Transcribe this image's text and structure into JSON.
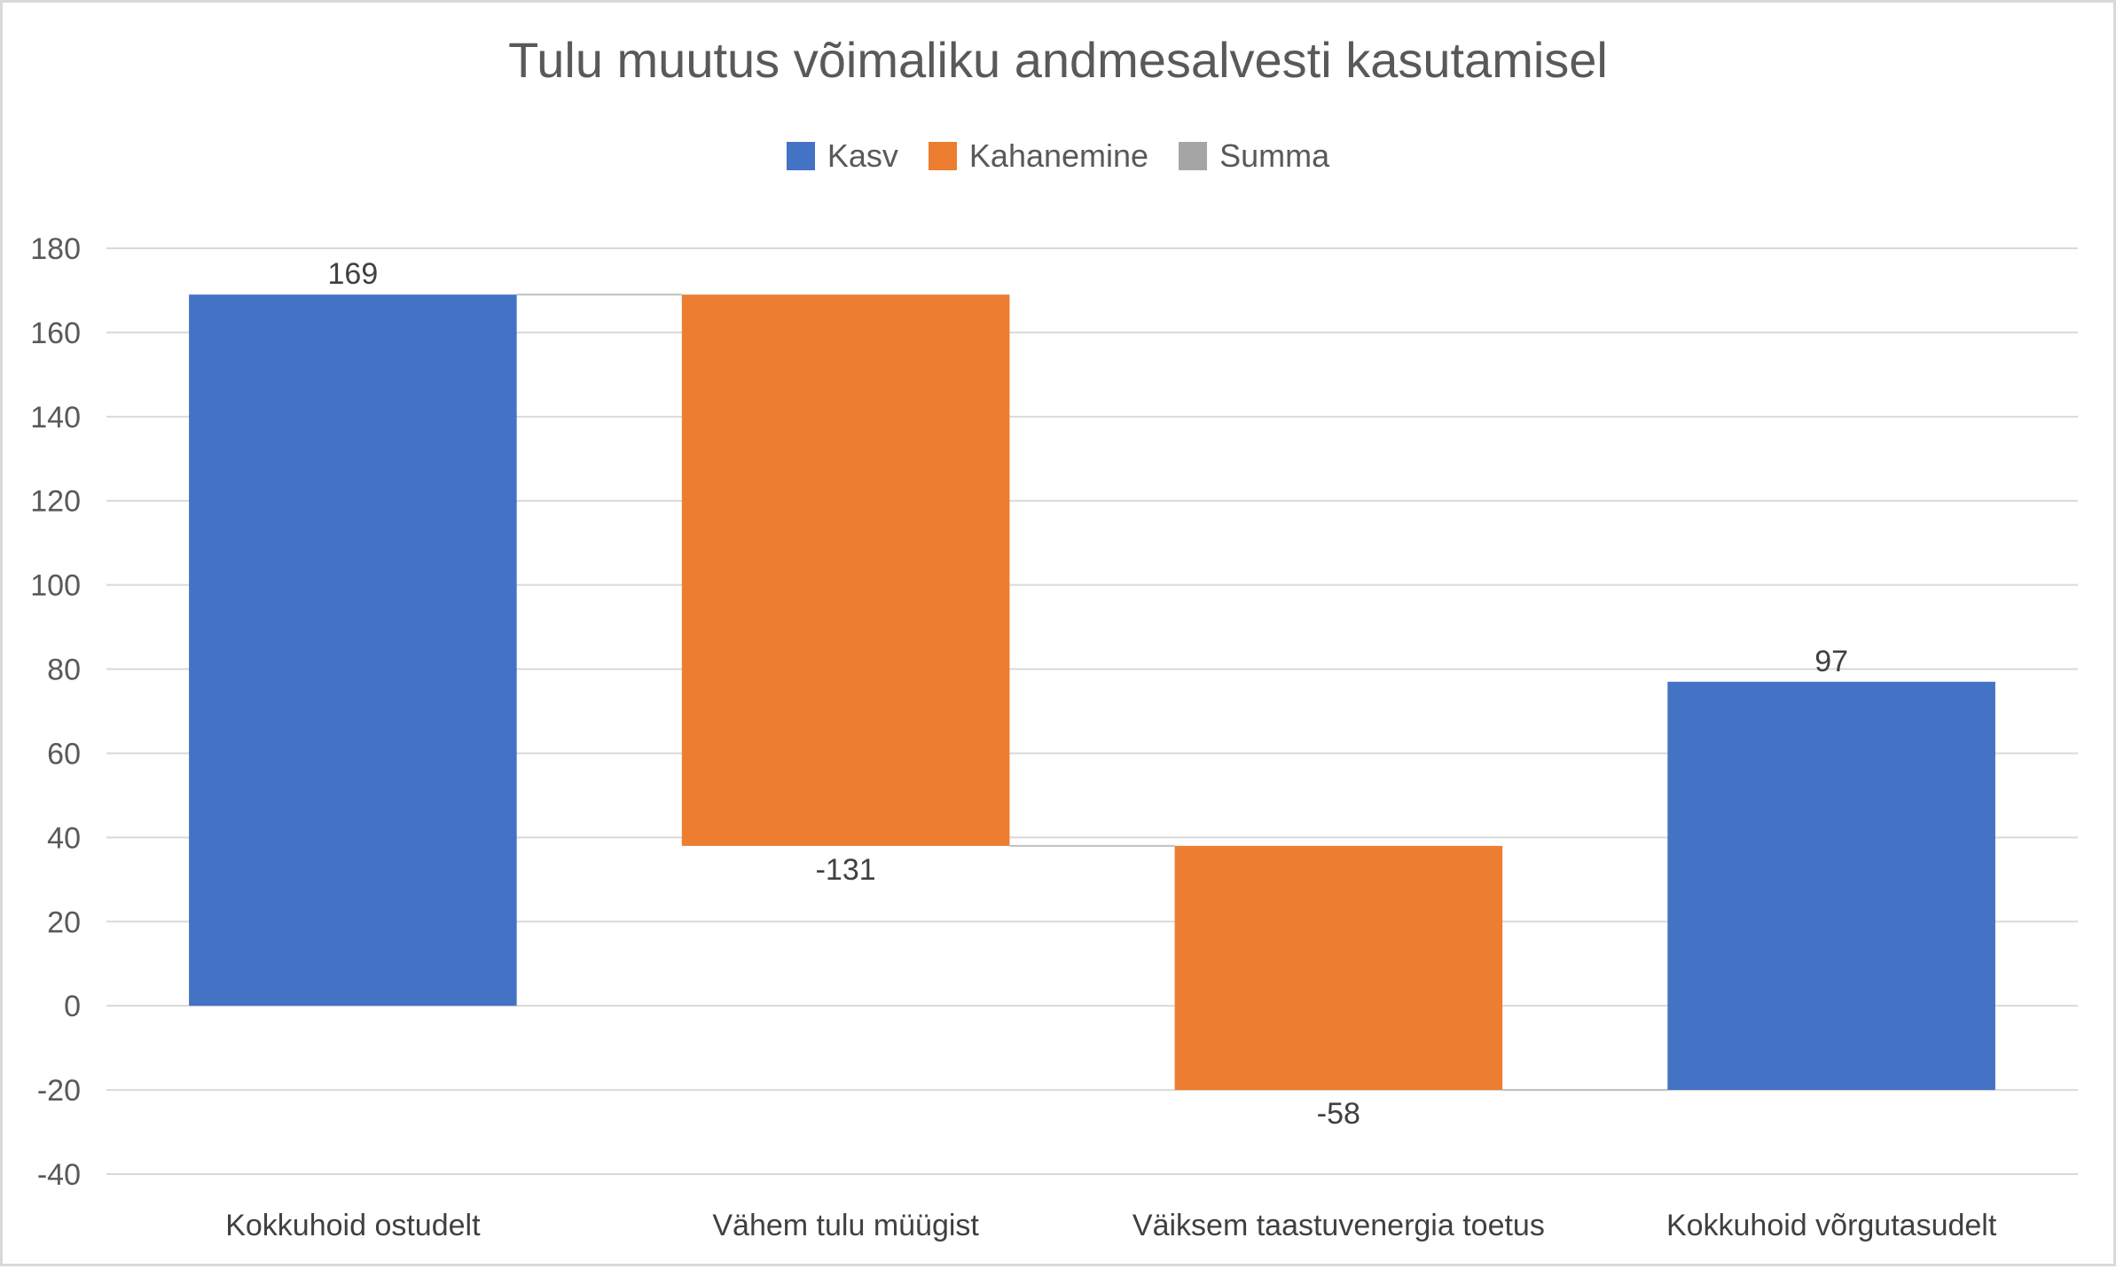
{
  "chart_data": {
    "type": "bar",
    "subtype": "waterfall",
    "title": "Tulu muutus võimaliku andmesalvesti kasutamisel",
    "xlabel": "",
    "ylabel": "",
    "ylim": [
      -40,
      180
    ],
    "yticks": [
      -40,
      -20,
      0,
      20,
      40,
      60,
      80,
      100,
      120,
      140,
      160,
      180
    ],
    "ytick_labels": [
      "-40",
      "-20",
      "0",
      "20",
      "40",
      "60",
      "80",
      "100",
      "120",
      "140",
      "160",
      "180"
    ],
    "grid": true,
    "legend_position": "top",
    "legend": [
      {
        "name": "Kasv",
        "color": "#4472C4"
      },
      {
        "name": "Kahanemine",
        "color": "#ED7D31"
      },
      {
        "name": "Summa",
        "color": "#A5A5A5"
      }
    ],
    "categories": [
      "Kokkuhoid ostudelt",
      "Vähem tulu müügist",
      "Väiksem taastuvenergia toetus",
      "Kokkuhoid võrgutasudelt"
    ],
    "bars": [
      {
        "category": "Kokkuhoid ostudelt",
        "type": "increase",
        "start": 0,
        "end": 169,
        "label": "169"
      },
      {
        "category": "Vähem tulu müügist",
        "type": "decrease",
        "start": 169,
        "end": 38,
        "label": "-131"
      },
      {
        "category": "Väiksem taastuvenergia toetus",
        "type": "decrease",
        "start": 38,
        "end": -20,
        "label": "-58"
      },
      {
        "category": "Kokkuhoid võrgutasudelt",
        "type": "increase",
        "start": -20,
        "end": 77,
        "label": "97"
      }
    ],
    "colors": {
      "increase": "#4472C4",
      "decrease": "#ED7D31",
      "total": "#A5A5A5",
      "grid": "#d9d9d9",
      "connector": "#bfbfbf"
    }
  }
}
